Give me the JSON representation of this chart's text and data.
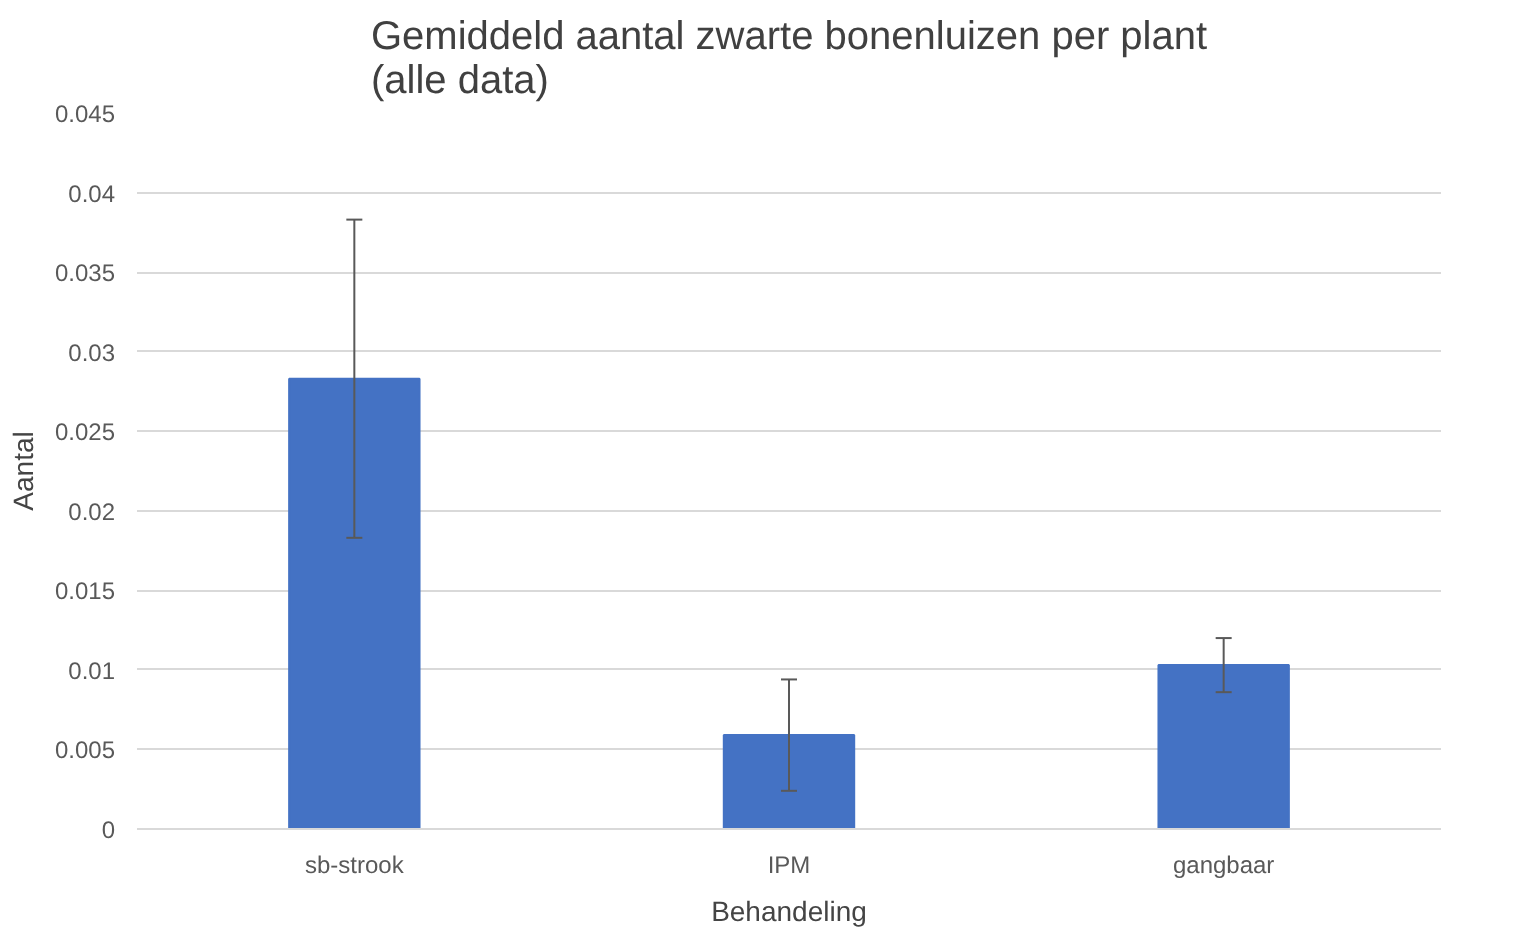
{
  "chart_data": {
    "type": "bar",
    "title": "Gemiddeld aantal zwarte bonenluizen per plant\n(alle data)",
    "xlabel": "Behandeling",
    "ylabel": "Aantal",
    "categories": [
      "sb-strook",
      "IPM",
      "gangbaar"
    ],
    "values": [
      0.0283,
      0.0059,
      0.0103
    ],
    "errors": [
      0.01,
      0.0035,
      0.0017
    ],
    "color": "#4472c4",
    "ylim": [
      0,
      0.045
    ],
    "yticks": [
      {
        "value": 0,
        "label": "0"
      },
      0.005,
      0.01,
      0.015,
      0.02,
      0.025,
      0.03,
      0.035,
      0.04,
      0.045
    ],
    "grid": "y"
  }
}
